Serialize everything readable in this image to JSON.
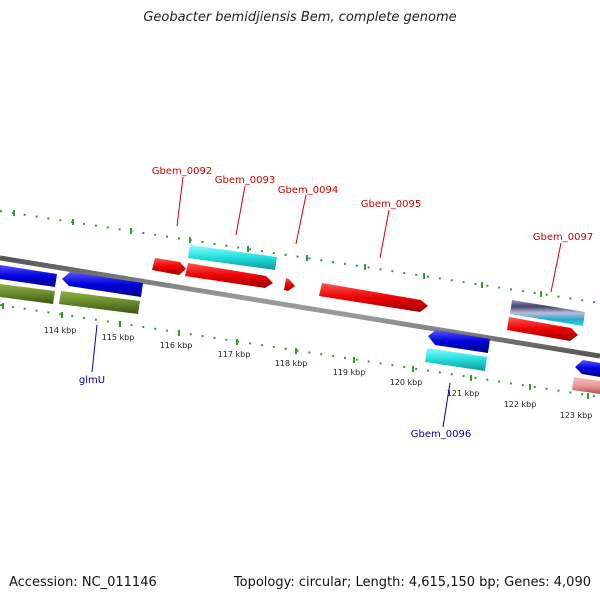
{
  "title": "Geobacter bemidjiensis Bem, complete genome",
  "accession": "Accession: NC_011146",
  "summary": "Topology: circular; Length: 4,615,150 bp; Genes: 4,090",
  "scale_labels": [
    "114 kbp",
    "115 kbp",
    "116 kbp",
    "117 kbp",
    "118 kbp",
    "119 kbp",
    "120 kbp",
    "121 kbp",
    "122 kbp",
    "123 kbp"
  ],
  "gene_labels_top": [
    "Gbem_0092",
    "Gbem_0093",
    "Gbem_0094",
    "Gbem_0095",
    "Gbem_0097"
  ],
  "gene_labels_bottom": [
    "glmU",
    "Gbem_0096"
  ],
  "colors": {
    "top_label": "#cc0000",
    "bottom_label": "#0000aa",
    "tick": "#339933",
    "backbone": "#888888",
    "cds_forward": "#ee0000",
    "cds_reverse": "#0000dd",
    "gene_reverse": "#66882a",
    "cyan_feature": "#22dddd",
    "pink_feature": "#ee9999",
    "lavender_feature": "#9999cc"
  }
}
